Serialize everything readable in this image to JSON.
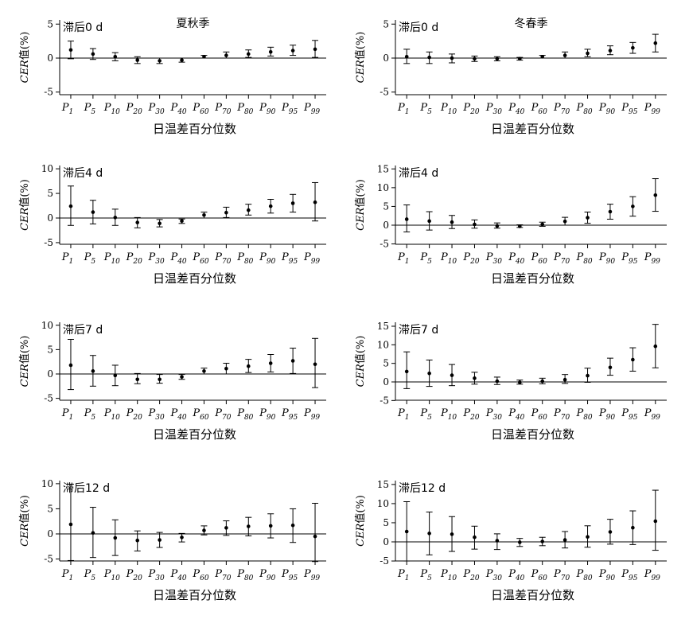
{
  "chart_data": [
    {
      "type": "scatter",
      "panel_label": "滞后0 d",
      "season_label": "夏秋季",
      "xlabel": "日温差百分位数",
      "ylabel": "CER值(%)",
      "categories": [
        "1",
        "5",
        "10",
        "20",
        "30",
        "40",
        "60",
        "70",
        "80",
        "90",
        "95",
        "99"
      ],
      "yticks": [
        -5,
        0,
        5
      ],
      "ylim": [
        -5.5,
        5.5
      ],
      "values": [
        1.2,
        0.6,
        0.2,
        -0.3,
        -0.4,
        -0.3,
        0.2,
        0.4,
        0.6,
        0.9,
        1.1,
        1.3
      ],
      "lower": [
        -0.1,
        -0.2,
        -0.4,
        -0.8,
        -0.8,
        -0.6,
        0.0,
        0.0,
        0.1,
        0.3,
        0.4,
        0.1
      ],
      "upper": [
        2.5,
        1.4,
        0.8,
        0.2,
        0.0,
        0.0,
        0.4,
        0.9,
        1.2,
        1.6,
        1.9,
        2.6
      ]
    },
    {
      "type": "scatter",
      "panel_label": "滞后0 d",
      "season_label": "冬春季",
      "xlabel": "日温差百分位数",
      "ylabel": "CER值(%)",
      "categories": [
        "1",
        "5",
        "10",
        "20",
        "30",
        "40",
        "60",
        "70",
        "80",
        "90",
        "95",
        "99"
      ],
      "yticks": [
        -5,
        0,
        5
      ],
      "ylim": [
        -5.5,
        5.5
      ],
      "values": [
        0.2,
        0.1,
        0.0,
        -0.1,
        -0.1,
        -0.1,
        0.2,
        0.4,
        0.7,
        1.1,
        1.5,
        2.2
      ],
      "lower": [
        -0.8,
        -0.8,
        -0.7,
        -0.5,
        -0.4,
        -0.3,
        0.0,
        0.0,
        0.2,
        0.5,
        0.7,
        0.9
      ],
      "upper": [
        1.3,
        0.9,
        0.6,
        0.3,
        0.2,
        0.1,
        0.4,
        0.9,
        1.3,
        1.8,
        2.3,
        3.5
      ]
    },
    {
      "type": "scatter",
      "panel_label": "滞后4 d",
      "xlabel": "日温差百分位数",
      "ylabel": "CER值(%)",
      "categories": [
        "1",
        "5",
        "10",
        "20",
        "30",
        "40",
        "60",
        "70",
        "80",
        "90",
        "95",
        "99"
      ],
      "yticks": [
        -5,
        0,
        5,
        10
      ],
      "ylim": [
        -5.5,
        10.5
      ],
      "values": [
        2.4,
        1.2,
        0.1,
        -0.9,
        -1.1,
        -0.6,
        0.6,
        1.1,
        1.6,
        2.4,
        3.0,
        3.2
      ],
      "lower": [
        -1.5,
        -1.2,
        -1.5,
        -2.0,
        -1.8,
        -1.1,
        0.0,
        0.1,
        0.6,
        1.0,
        1.2,
        -0.6
      ],
      "upper": [
        6.5,
        3.6,
        1.8,
        0.1,
        -0.3,
        -0.2,
        1.2,
        2.2,
        2.8,
        3.8,
        4.8,
        7.2
      ]
    },
    {
      "type": "scatter",
      "panel_label": "滞后4 d",
      "xlabel": "日温差百分位数",
      "ylabel": "CER值(%)",
      "categories": [
        "1",
        "5",
        "10",
        "20",
        "30",
        "40",
        "60",
        "70",
        "80",
        "90",
        "95",
        "99"
      ],
      "yticks": [
        -5,
        0,
        5,
        10,
        15
      ],
      "ylim": [
        -5.5,
        15.5
      ],
      "values": [
        1.6,
        1.1,
        0.8,
        0.2,
        -0.2,
        -0.3,
        0.2,
        1.0,
        2.0,
        3.6,
        5.0,
        8.0
      ],
      "lower": [
        -1.8,
        -1.3,
        -0.9,
        -0.8,
        -0.8,
        -0.6,
        -0.3,
        0.0,
        0.5,
        1.6,
        2.4,
        3.7
      ],
      "upper": [
        5.4,
        3.6,
        2.6,
        1.4,
        0.6,
        0.1,
        0.8,
        2.1,
        3.5,
        5.6,
        7.6,
        12.4
      ]
    },
    {
      "type": "scatter",
      "panel_label": "滞后7 d",
      "xlabel": "日温差百分位数",
      "ylabel": "CER值(%)",
      "categories": [
        "1",
        "5",
        "10",
        "20",
        "30",
        "40",
        "60",
        "70",
        "80",
        "90",
        "95",
        "99"
      ],
      "yticks": [
        -5,
        0,
        5,
        10
      ],
      "ylim": [
        -5.5,
        10.5
      ],
      "values": [
        1.8,
        0.6,
        -0.3,
        -1.1,
        -1.1,
        -0.6,
        0.6,
        1.1,
        1.6,
        2.2,
        2.7,
        2.0
      ],
      "lower": [
        -3.2,
        -2.5,
        -2.4,
        -2.0,
        -1.9,
        -1.1,
        0.0,
        0.0,
        0.3,
        0.4,
        0.1,
        -2.8
      ],
      "upper": [
        7.1,
        3.8,
        1.8,
        0.1,
        -0.1,
        -0.1,
        1.2,
        2.2,
        3.0,
        4.0,
        5.3,
        7.3
      ]
    },
    {
      "type": "scatter",
      "panel_label": "滞后7 d",
      "xlabel": "日温差百分位数",
      "ylabel": "CER值(%)",
      "categories": [
        "1",
        "5",
        "10",
        "20",
        "30",
        "40",
        "60",
        "70",
        "80",
        "90",
        "95",
        "99"
      ],
      "yticks": [
        -5,
        0,
        5,
        10,
        15
      ],
      "ylim": [
        -5.5,
        15.5
      ],
      "values": [
        2.8,
        2.3,
        1.8,
        1.0,
        0.2,
        -0.1,
        0.2,
        0.6,
        1.7,
        3.9,
        6.0,
        9.6
      ],
      "lower": [
        -1.8,
        -1.2,
        -1.0,
        -0.6,
        -0.7,
        -0.6,
        -0.5,
        -0.4,
        -0.1,
        1.8,
        2.9,
        3.8
      ],
      "upper": [
        8.1,
        5.9,
        4.7,
        2.6,
        1.3,
        0.5,
        1.0,
        2.0,
        3.7,
        6.4,
        9.2,
        15.5
      ]
    },
    {
      "type": "scatter",
      "panel_label": "滞后12 d",
      "xlabel": "日温差百分位数",
      "ylabel": "CER值(%)",
      "categories": [
        "1",
        "5",
        "10",
        "20",
        "30",
        "40",
        "60",
        "70",
        "80",
        "90",
        "95",
        "99"
      ],
      "yticks": [
        -5,
        0,
        5,
        10
      ],
      "ylim": [
        -5.5,
        10.5
      ],
      "values": [
        1.9,
        0.2,
        -0.8,
        -1.3,
        -1.2,
        -0.7,
        0.7,
        1.2,
        1.5,
        1.6,
        1.7,
        -0.5
      ],
      "lower": [
        -5.3,
        -4.7,
        -4.3,
        -3.4,
        -2.7,
        -1.6,
        -0.2,
        -0.3,
        -0.4,
        -0.8,
        -1.7,
        -5.5
      ],
      "upper": [
        9.9,
        5.3,
        2.8,
        0.6,
        0.3,
        0.1,
        1.6,
        2.6,
        3.3,
        4.0,
        5.0,
        6.1
      ]
    },
    {
      "type": "scatter",
      "panel_label": "滞后12 d",
      "xlabel": "日温差百分位数",
      "ylabel": "CER值(%)",
      "categories": [
        "1",
        "5",
        "10",
        "20",
        "30",
        "40",
        "60",
        "70",
        "80",
        "90",
        "95",
        "99"
      ],
      "yticks": [
        -5,
        0,
        5,
        10,
        15
      ],
      "ylim": [
        -5.5,
        15.5
      ],
      "values": [
        2.7,
        2.2,
        2.0,
        1.2,
        0.3,
        -0.1,
        0.1,
        0.5,
        1.3,
        2.6,
        3.7,
        5.4
      ],
      "lower": [
        -5.0,
        -3.4,
        -2.5,
        -1.9,
        -2.0,
        -1.2,
        -1.0,
        -1.6,
        -1.4,
        -0.6,
        -0.7,
        -2.2
      ],
      "upper": [
        10.5,
        7.8,
        6.6,
        4.1,
        2.1,
        0.9,
        1.2,
        2.7,
        4.2,
        5.9,
        8.1,
        13.5
      ]
    }
  ]
}
